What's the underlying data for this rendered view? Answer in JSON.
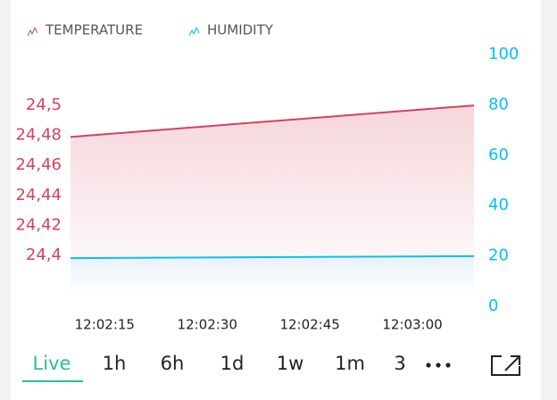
{
  "chart_data": {
    "type": "line",
    "x": [
      "12:02:10",
      "12:03:09"
    ],
    "series": [
      {
        "name": "TEMPERATURE",
        "color": "#d3435c",
        "values": [
          24.479,
          24.5
        ]
      },
      {
        "name": "HUMIDITY",
        "color": "#04c0f8",
        "axis": "y2",
        "values": [
          19.1,
          19.9
        ]
      }
    ],
    "xlim": [
      "12:02:10",
      "12:03:09"
    ],
    "xticks": [
      "12:02:15",
      "12:02:30",
      "12:02:45",
      "12:03:00"
    ],
    "ylim": [
      24.366,
      24.534
    ],
    "yticks": [
      {
        "value": 24.4,
        "label": "24,4"
      },
      {
        "value": 24.42,
        "label": "24,42"
      },
      {
        "value": 24.44,
        "label": "24,44"
      },
      {
        "value": 24.46,
        "label": "24,46"
      },
      {
        "value": 24.48,
        "label": "24,48"
      },
      {
        "value": 24.5,
        "label": "24,5"
      }
    ],
    "y2lim": [
      0,
      100
    ],
    "y2ticks": [
      0,
      20,
      40,
      60,
      80,
      100
    ]
  },
  "tabs": [
    "Live",
    "1h",
    "6h",
    "1d",
    "1w",
    "1m",
    "3"
  ]
}
